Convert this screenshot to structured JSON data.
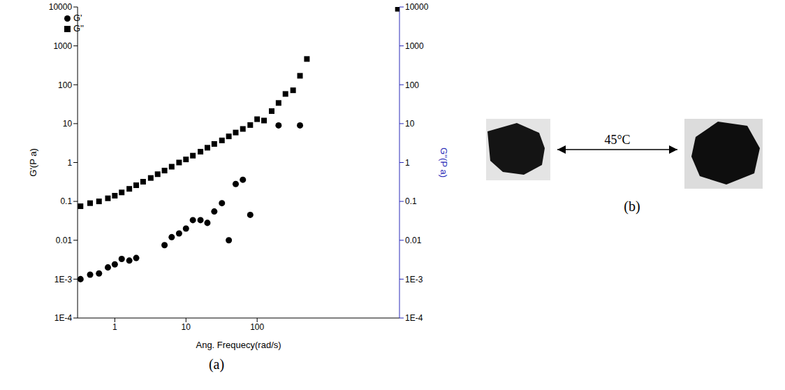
{
  "chart_data": {
    "type": "scatter",
    "x_label": "Ang. Frequecy(rad/s)",
    "y_label": "G'(P a)",
    "y2_label": "G''(P a)",
    "log": true,
    "grid": false,
    "legend": "top-left",
    "xlim": [
      0.3,
      10000
    ],
    "xticks": [
      1,
      10,
      100
    ],
    "ylim": [
      0.0001,
      10000
    ],
    "yticks": [
      {
        "value": 0.0001,
        "label": "1E-4"
      },
      {
        "value": 0.001,
        "label": "1E-3"
      },
      0.01,
      0.1,
      1,
      10,
      100,
      1000,
      10000
    ],
    "y2lim": [
      0.0001,
      10000
    ],
    "y2ticks": [
      {
        "value": 0.0001,
        "label": "1E-4"
      },
      {
        "value": 0.001,
        "label": "1E-3"
      },
      0.01,
      0.1,
      1,
      10,
      100,
      1000,
      10000
    ],
    "series": [
      {
        "name": "G'",
        "color": "#000000",
        "marker": "circle",
        "x": [
          0.33,
          0.45,
          0.6,
          0.8,
          1,
          1.25,
          1.6,
          2,
          5,
          6.3,
          8,
          10,
          12.5,
          16,
          20,
          25,
          32,
          40,
          50,
          63,
          80,
          200,
          400
        ],
        "values": [
          0.001,
          0.0013,
          0.0014,
          0.002,
          0.0024,
          0.0033,
          0.003,
          0.0035,
          0.0075,
          0.012,
          0.015,
          0.02,
          0.033,
          0.033,
          0.028,
          0.055,
          0.09,
          0.01,
          0.28,
          0.36,
          0.045,
          9,
          9
        ]
      },
      {
        "name": "G''",
        "color": "#000000",
        "marker": "square",
        "axis": "y2",
        "x": [
          0.33,
          0.45,
          0.6,
          0.8,
          1,
          1.25,
          1.6,
          2,
          2.5,
          3.2,
          4,
          5,
          6.3,
          8,
          10,
          12.5,
          16,
          20,
          25,
          32,
          40,
          50,
          63,
          80,
          100,
          125,
          160,
          200,
          250,
          320,
          400,
          500,
          9500
        ],
        "values": [
          0.075,
          0.09,
          0.1,
          0.12,
          0.14,
          0.17,
          0.21,
          0.26,
          0.32,
          0.4,
          0.5,
          0.62,
          0.78,
          1,
          1.2,
          1.5,
          1.9,
          2.4,
          3,
          3.7,
          4.7,
          5.9,
          7.3,
          9.2,
          13,
          12,
          21,
          34,
          58,
          72,
          170,
          460,
          9000
        ]
      }
    ]
  },
  "figure": {
    "panel_a_label": "(a)",
    "panel_b_label": "(b)",
    "arrow_label": "45°C"
  }
}
